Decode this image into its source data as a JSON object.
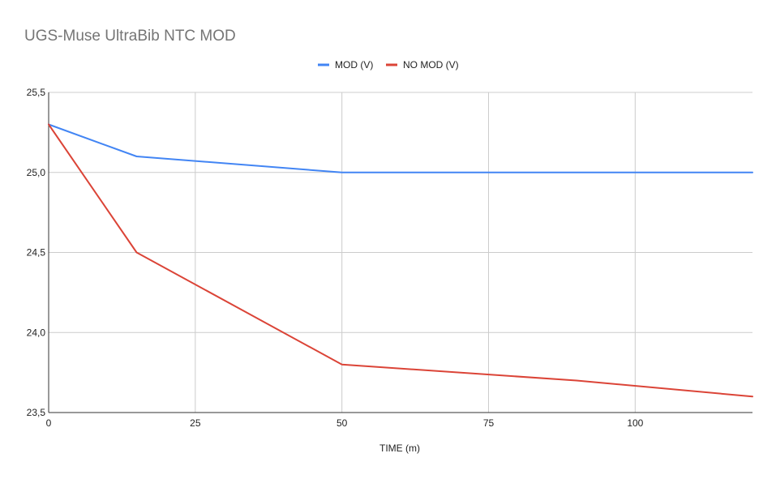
{
  "chart_data": {
    "type": "line",
    "title": "UGS-Muse UltraBib NTC MOD",
    "xlabel": "TIME (m)",
    "ylabel": "",
    "xlim": [
      0,
      120
    ],
    "ylim": [
      23.5,
      25.5
    ],
    "x_ticks": [
      0,
      25,
      50,
      75,
      100
    ],
    "x_tick_labels": [
      "0",
      "25",
      "50",
      "75",
      "100"
    ],
    "y_ticks": [
      23.5,
      24.0,
      24.5,
      25.0,
      25.5
    ],
    "y_tick_labels": [
      "23,5",
      "24,0",
      "24,5",
      "25,0",
      "25,5"
    ],
    "grid": true,
    "legend_position": "top-center",
    "series": [
      {
        "name": "MOD (V)",
        "color": "#4285f4",
        "x": [
          0,
          15,
          50,
          120
        ],
        "y": [
          25.3,
          25.1,
          25.0,
          25.0
        ]
      },
      {
        "name": "NO MOD (V)",
        "color": "#db4437",
        "x": [
          0,
          15,
          50,
          90,
          120
        ],
        "y": [
          25.3,
          24.5,
          23.8,
          23.7,
          23.6
        ]
      }
    ]
  }
}
